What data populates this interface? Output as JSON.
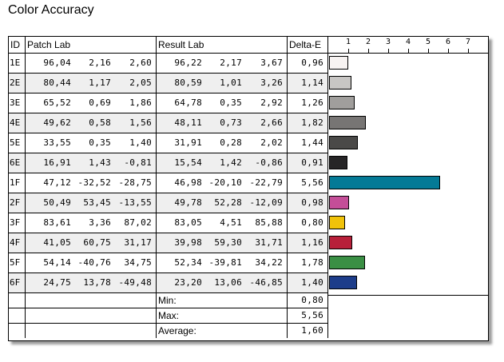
{
  "title": "Color Accuracy",
  "headers": {
    "id": "ID",
    "patch": "Patch Lab",
    "result": "Result Lab",
    "delta": "Delta-E"
  },
  "axis_ticks": [
    "1",
    "2",
    "3",
    "4",
    "5",
    "6",
    "7"
  ],
  "rows": [
    {
      "id": "1E",
      "p_l": "96,04",
      "p_a": "2,16",
      "p_b": "2,60",
      "r_l": "96,22",
      "r_a": "2,17",
      "r_b": "3,67",
      "de": "0,96",
      "de_value": 0.96,
      "color": "#f7f3f2"
    },
    {
      "id": "2E",
      "p_l": "80,44",
      "p_a": "1,17",
      "p_b": "2,05",
      "r_l": "80,59",
      "r_a": "1,01",
      "r_b": "3,26",
      "de": "1,14",
      "de_value": 1.14,
      "color": "#c8c6c4"
    },
    {
      "id": "3E",
      "p_l": "65,52",
      "p_a": "0,69",
      "p_b": "1,86",
      "r_l": "64,78",
      "r_a": "0,35",
      "r_b": "2,92",
      "de": "1,26",
      "de_value": 1.26,
      "color": "#a09e9c"
    },
    {
      "id": "4E",
      "p_l": "49,62",
      "p_a": "0,58",
      "p_b": "1,56",
      "r_l": "48,11",
      "r_a": "0,73",
      "r_b": "2,66",
      "de": "1,82",
      "de_value": 1.82,
      "color": "#777574"
    },
    {
      "id": "5E",
      "p_l": "33,55",
      "p_a": "0,35",
      "p_b": "1,40",
      "r_l": "31,91",
      "r_a": "0,28",
      "r_b": "2,02",
      "de": "1,44",
      "de_value": 1.44,
      "color": "#4a4948"
    },
    {
      "id": "6E",
      "p_l": "16,91",
      "p_a": "1,43",
      "p_b": "-0,81",
      "r_l": "15,54",
      "r_a": "1,42",
      "r_b": "-0,86",
      "de": "0,91",
      "de_value": 0.91,
      "color": "#262526"
    },
    {
      "id": "1F",
      "p_l": "47,12",
      "p_a": "-32,52",
      "p_b": "-28,75",
      "r_l": "46,98",
      "r_a": "-20,10",
      "r_b": "-22,79",
      "de": "5,56",
      "de_value": 5.56,
      "color": "#047a96"
    },
    {
      "id": "2F",
      "p_l": "50,49",
      "p_a": "53,45",
      "p_b": "-13,55",
      "r_l": "49,78",
      "r_a": "52,28",
      "r_b": "-12,09",
      "de": "0,98",
      "de_value": 0.98,
      "color": "#c44e98"
    },
    {
      "id": "3F",
      "p_l": "83,61",
      "p_a": "3,36",
      "p_b": "87,02",
      "r_l": "83,05",
      "r_a": "4,51",
      "r_b": "85,88",
      "de": "0,80",
      "de_value": 0.8,
      "color": "#f0c20a"
    },
    {
      "id": "4F",
      "p_l": "41,05",
      "p_a": "60,75",
      "p_b": "31,17",
      "r_l": "39,98",
      "r_a": "59,30",
      "r_b": "31,71",
      "de": "1,16",
      "de_value": 1.16,
      "color": "#b8203a"
    },
    {
      "id": "5F",
      "p_l": "54,14",
      "p_a": "-40,76",
      "p_b": "34,75",
      "r_l": "52,34",
      "r_a": "-39,81",
      "r_b": "34,22",
      "de": "1,78",
      "de_value": 1.78,
      "color": "#3a8f44"
    },
    {
      "id": "6F",
      "p_l": "24,75",
      "p_a": "13,78",
      "p_b": "-49,48",
      "r_l": "23,20",
      "r_a": "13,06",
      "r_b": "-46,85",
      "de": "1,40",
      "de_value": 1.4,
      "color": "#1d3d8a"
    }
  ],
  "summary": [
    {
      "label": "Min:",
      "value": "0,80"
    },
    {
      "label": "Max:",
      "value": "5,56"
    },
    {
      "label": "Average:",
      "value": "1,60"
    }
  ]
}
